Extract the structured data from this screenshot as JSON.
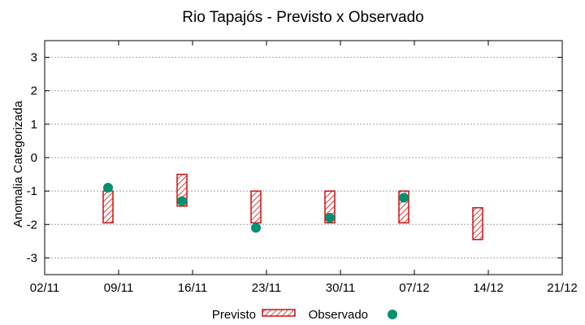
{
  "chart_data": {
    "type": "floating-bar-with-scatter",
    "title": "Rio Tapajós - Previsto x Observado",
    "xlabel": "",
    "ylabel": "Anomalia Categorizada",
    "x_ticks": [
      "02/11",
      "09/11",
      "16/11",
      "23/11",
      "30/11",
      "07/12",
      "14/12",
      "21/12"
    ],
    "xlim_days": [
      0,
      49
    ],
    "ylim": [
      -3.5,
      3.5
    ],
    "y_ticks": [
      -3,
      -2,
      -1,
      0,
      1,
      2,
      3
    ],
    "grid": true,
    "legend_position": "bottom-center",
    "series": [
      {
        "name": "Previsto",
        "kind": "range-bar",
        "color": "#cc1111",
        "points": [
          {
            "day": 6,
            "low": -1.95,
            "high": -1.0
          },
          {
            "day": 13,
            "low": -1.45,
            "high": -0.5
          },
          {
            "day": 20,
            "low": -1.95,
            "high": -1.0
          },
          {
            "day": 27,
            "low": -1.95,
            "high": -1.0
          },
          {
            "day": 34,
            "low": -1.95,
            "high": -1.0
          },
          {
            "day": 41,
            "low": -2.45,
            "high": -1.5
          }
        ]
      },
      {
        "name": "Observado",
        "kind": "scatter",
        "color": "#009070",
        "points": [
          {
            "day": 6,
            "value": -0.9
          },
          {
            "day": 13,
            "value": -1.3
          },
          {
            "day": 20,
            "value": -2.1
          },
          {
            "day": 27,
            "value": -1.8
          },
          {
            "day": 34,
            "value": -1.2
          }
        ]
      }
    ]
  }
}
